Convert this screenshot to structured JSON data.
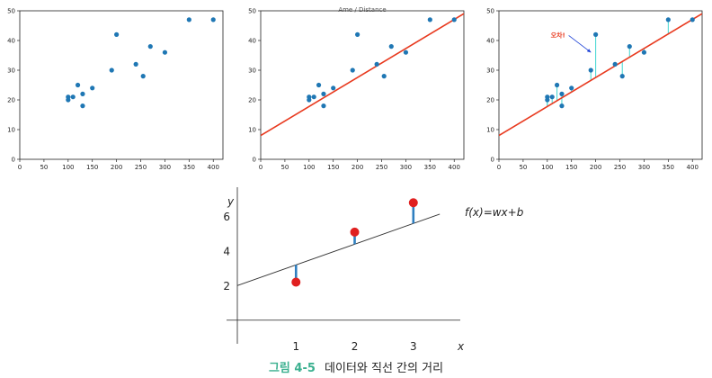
{
  "caption": {
    "number": "그림 4-5",
    "text": "데이터와 직선 간의 거리"
  },
  "scatter_points": {
    "x": [
      100,
      100,
      110,
      120,
      130,
      130,
      150,
      190,
      200,
      240,
      255,
      270,
      300,
      350,
      400
    ],
    "y": [
      20,
      21,
      21,
      25,
      22,
      18,
      24,
      30,
      42,
      32,
      28,
      38,
      36,
      47,
      47
    ]
  },
  "colors": {
    "point": "#1f77b4",
    "fit": "#e8391e",
    "residual": "#40d6d0",
    "arrow": "#1a3fd6",
    "label": "#e8391e",
    "caption_num": "#3bb08f",
    "dot": "#e02020",
    "bar": "#2f7fc0",
    "line2": "#333333"
  },
  "chart_data": [
    {
      "type": "scatter",
      "title": "",
      "xlim": [
        0,
        420
      ],
      "ylim": [
        0,
        50
      ],
      "xticks": [
        "0",
        "50",
        "100",
        "150",
        "200",
        "250",
        "300",
        "350",
        "400"
      ],
      "yticks": [
        "0",
        "10",
        "20",
        "30",
        "40",
        "50"
      ],
      "points_ref": "scatter_points"
    },
    {
      "type": "scatter",
      "title": "Ame / Distance",
      "xlim": [
        0,
        420
      ],
      "ylim": [
        0,
        50
      ],
      "xticks": [
        "0",
        "50",
        "100",
        "150",
        "200",
        "250",
        "300",
        "350",
        "400"
      ],
      "yticks": [
        "0",
        "10",
        "20",
        "30",
        "40",
        "50"
      ],
      "points_ref": "scatter_points",
      "fit_line": {
        "slope": 0.0977,
        "intercept": 8.0
      }
    },
    {
      "type": "scatter",
      "title": "",
      "xlim": [
        0,
        420
      ],
      "ylim": [
        0,
        50
      ],
      "xticks": [
        "0",
        "50",
        "100",
        "150",
        "200",
        "250",
        "300",
        "350",
        "400"
      ],
      "yticks": [
        "0",
        "10",
        "20",
        "30",
        "40",
        "50"
      ],
      "points_ref": "scatter_points",
      "fit_line": {
        "slope": 0.0977,
        "intercept": 8.0
      },
      "residuals": true,
      "annotation": "오차!"
    },
    {
      "type": "line",
      "xlabel": "x",
      "ylabel": "y",
      "xlim": [
        0,
        3.8
      ],
      "ylim": [
        -0.9,
        7.7
      ],
      "xticks": [
        "1",
        "2",
        "3"
      ],
      "yticks": [
        "2",
        "4",
        "6"
      ],
      "line": {
        "slope": 1.2,
        "intercept": 2,
        "label": "f(x)=wx+b"
      },
      "points": [
        {
          "x": 1,
          "y": 2.2
        },
        {
          "x": 2,
          "y": 5.1
        },
        {
          "x": 3,
          "y": 6.8
        }
      ]
    }
  ]
}
